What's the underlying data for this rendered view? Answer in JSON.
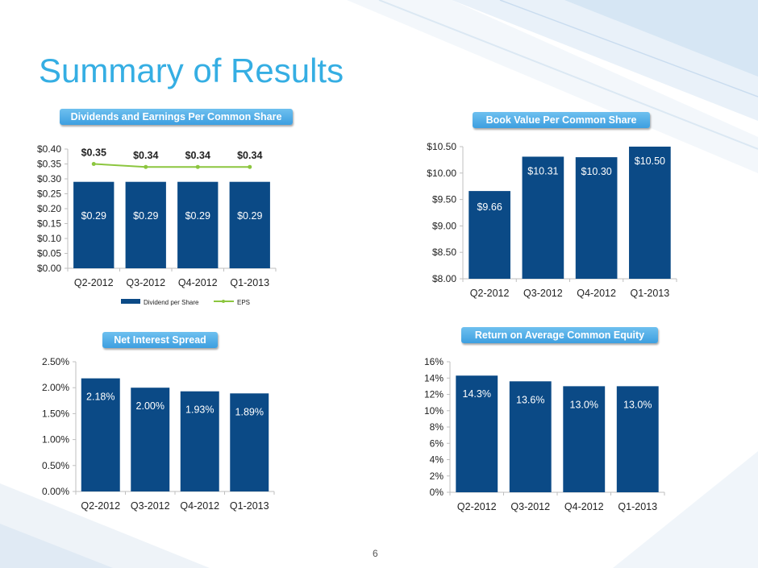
{
  "title": "Summary of Results",
  "page_number": "6",
  "colors": {
    "title": "#35aee3",
    "bar": "#0b4a86",
    "eps_line": "#8cc63f",
    "pill": "#4aa8e6"
  },
  "chart_data": [
    {
      "type": "bar",
      "title": "Dividends and Earnings Per Common Share",
      "categories": [
        "Q2-2012",
        "Q3-2012",
        "Q4-2012",
        "Q1-2013"
      ],
      "series": [
        {
          "name": "Dividend per Share",
          "values": [
            0.29,
            0.29,
            0.29,
            0.29
          ],
          "labels": [
            "$0.29",
            "$0.29",
            "$0.29",
            "$0.29"
          ]
        },
        {
          "name": "EPS",
          "type": "line",
          "values": [
            0.35,
            0.34,
            0.34,
            0.34
          ],
          "labels": [
            "$0.35",
            "$0.34",
            "$0.34",
            "$0.34"
          ]
        }
      ],
      "ylim": [
        0,
        0.4
      ],
      "yticks": [
        "$0.00",
        "$0.05",
        "$0.10",
        "$0.15",
        "$0.20",
        "$0.25",
        "$0.30",
        "$0.35",
        "$0.40"
      ],
      "legend": "bottom"
    },
    {
      "type": "bar",
      "title": "Book Value Per Common Share",
      "categories": [
        "Q2-2012",
        "Q3-2012",
        "Q4-2012",
        "Q1-2013"
      ],
      "values": [
        9.66,
        10.31,
        10.3,
        10.5
      ],
      "labels": [
        "$9.66",
        "$10.31",
        "$10.30",
        "$10.50"
      ],
      "ylim": [
        8.0,
        10.5
      ],
      "yticks": [
        "$8.00",
        "$8.50",
        "$9.00",
        "$9.50",
        "$10.00",
        "$10.50"
      ]
    },
    {
      "type": "bar",
      "title": "Net Interest Spread",
      "categories": [
        "Q2-2012",
        "Q3-2012",
        "Q4-2012",
        "Q1-2013"
      ],
      "values": [
        2.18,
        2.0,
        1.93,
        1.89
      ],
      "labels": [
        "2.18%",
        "2.00%",
        "1.93%",
        "1.89%"
      ],
      "ylim": [
        0,
        2.5
      ],
      "yticks": [
        "0.00%",
        "0.50%",
        "1.00%",
        "1.50%",
        "2.00%",
        "2.50%"
      ]
    },
    {
      "type": "bar",
      "title": "Return on Average Common Equity",
      "categories": [
        "Q2-2012",
        "Q3-2012",
        "Q4-2012",
        "Q1-2013"
      ],
      "values": [
        14.3,
        13.6,
        13.0,
        13.0
      ],
      "labels": [
        "14.3%",
        "13.6%",
        "13.0%",
        "13.0%"
      ],
      "ylim": [
        0,
        16
      ],
      "yticks": [
        "0%",
        "2%",
        "4%",
        "6%",
        "8%",
        "10%",
        "12%",
        "14%",
        "16%"
      ]
    }
  ]
}
